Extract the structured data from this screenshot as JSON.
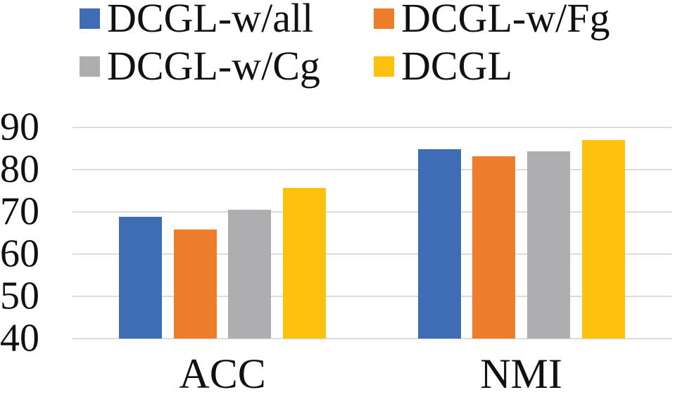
{
  "figure": {
    "background": "#ffffff",
    "text_color": "#111111",
    "gridline_color": "#DCDCDC"
  },
  "legend": {
    "position": "top",
    "items": [
      {
        "label": "DCGL-w/all",
        "color": "#3E6DB5"
      },
      {
        "label": "DCGL-w/Fg",
        "color": "#ED7D2B"
      },
      {
        "label": "DCGL-w/Cg",
        "color": "#AEAEB1"
      },
      {
        "label": "DCGL",
        "color": "#FEC10D"
      }
    ]
  },
  "chart_data": {
    "type": "bar",
    "title": "",
    "xlabel": "",
    "ylabel": "",
    "categories": [
      "ACC",
      "NMI"
    ],
    "series": [
      {
        "name": "DCGL-w/all",
        "color": "#3E6DB5",
        "values": [
          68.8,
          84.9
        ]
      },
      {
        "name": "DCGL-w/Fg",
        "color": "#ED7D2B",
        "values": [
          65.8,
          83.2
        ]
      },
      {
        "name": "DCGL-w/Cg",
        "color": "#AEAEB1",
        "values": [
          70.5,
          84.4
        ]
      },
      {
        "name": "DCGL",
        "color": "#FEC10D",
        "values": [
          75.6,
          87.0
        ]
      }
    ],
    "ylim": [
      40,
      90
    ],
    "yticks": [
      40,
      50,
      60,
      70,
      80,
      90
    ],
    "grid": true,
    "legend_position": "top"
  }
}
